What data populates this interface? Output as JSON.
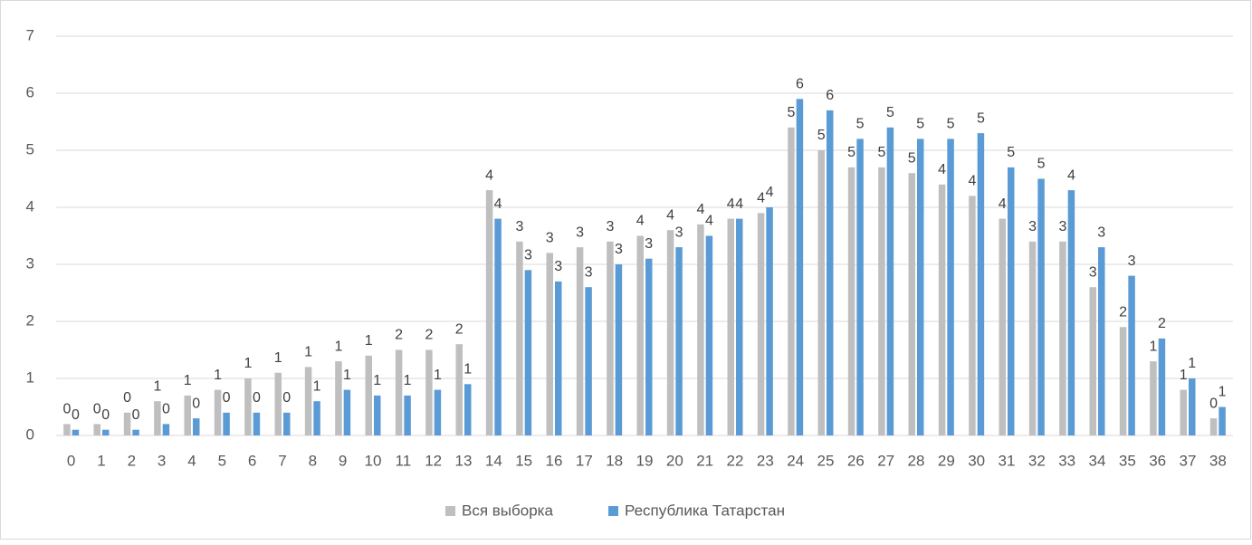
{
  "chart_data": {
    "type": "bar",
    "categories": [
      "0",
      "1",
      "2",
      "3",
      "4",
      "5",
      "6",
      "7",
      "8",
      "9",
      "10",
      "11",
      "12",
      "13",
      "14",
      "15",
      "16",
      "17",
      "18",
      "19",
      "20",
      "21",
      "22",
      "23",
      "24",
      "25",
      "26",
      "27",
      "28",
      "29",
      "30",
      "31",
      "32",
      "33",
      "34",
      "35",
      "36",
      "37",
      "38"
    ],
    "series": [
      {
        "name": "Вся выборка",
        "color": "#bfbfbf",
        "values": [
          0.2,
          0.2,
          0.4,
          0.6,
          0.7,
          0.8,
          1.0,
          1.1,
          1.2,
          1.3,
          1.4,
          1.5,
          1.5,
          1.6,
          4.3,
          3.4,
          3.2,
          3.3,
          3.4,
          3.5,
          3.6,
          3.7,
          3.8,
          3.9,
          5.4,
          5.0,
          4.7,
          4.7,
          4.6,
          4.4,
          4.2,
          3.8,
          3.4,
          3.4,
          2.6,
          1.9,
          1.3,
          0.8,
          0.3
        ],
        "value_labels": [
          "0",
          "0",
          "0",
          "1",
          "1",
          "1",
          "1",
          "1",
          "1",
          "1",
          "1",
          "2",
          "2",
          "2",
          "4",
          "3",
          "3",
          "3",
          "3",
          "4",
          "4",
          "4",
          "4",
          "4",
          "5",
          "5",
          "5",
          "5",
          "5",
          "4",
          "4",
          "4",
          "3",
          "3",
          "3",
          "2",
          "1",
          "1",
          "0"
        ]
      },
      {
        "name": "Республика Татарстан",
        "color": "#5b9bd5",
        "values": [
          0.1,
          0.1,
          0.1,
          0.2,
          0.3,
          0.4,
          0.4,
          0.4,
          0.6,
          0.8,
          0.7,
          0.7,
          0.8,
          0.9,
          3.8,
          2.9,
          2.7,
          2.6,
          3.0,
          3.1,
          3.3,
          3.5,
          3.8,
          4.0,
          5.9,
          5.7,
          5.2,
          5.4,
          5.2,
          5.2,
          5.3,
          4.7,
          4.5,
          4.3,
          3.3,
          2.8,
          1.7,
          1.0,
          0.5
        ],
        "value_labels": [
          "0",
          "0",
          "0",
          "0",
          "0",
          "0",
          "0",
          "0",
          "1",
          "1",
          "1",
          "1",
          "1",
          "1",
          "4",
          "3",
          "3",
          "3",
          "3",
          "3",
          "3",
          "4",
          "4",
          "4",
          "6",
          "6",
          "5",
          "5",
          "5",
          "5",
          "5",
          "5",
          "5",
          "4",
          "3",
          "3",
          "2",
          "1",
          "1"
        ]
      }
    ],
    "ylim": [
      0,
      7
    ],
    "yticks": [
      0,
      1,
      2,
      3,
      4,
      5,
      6,
      7
    ],
    "grid": true,
    "legend": "bottom"
  }
}
